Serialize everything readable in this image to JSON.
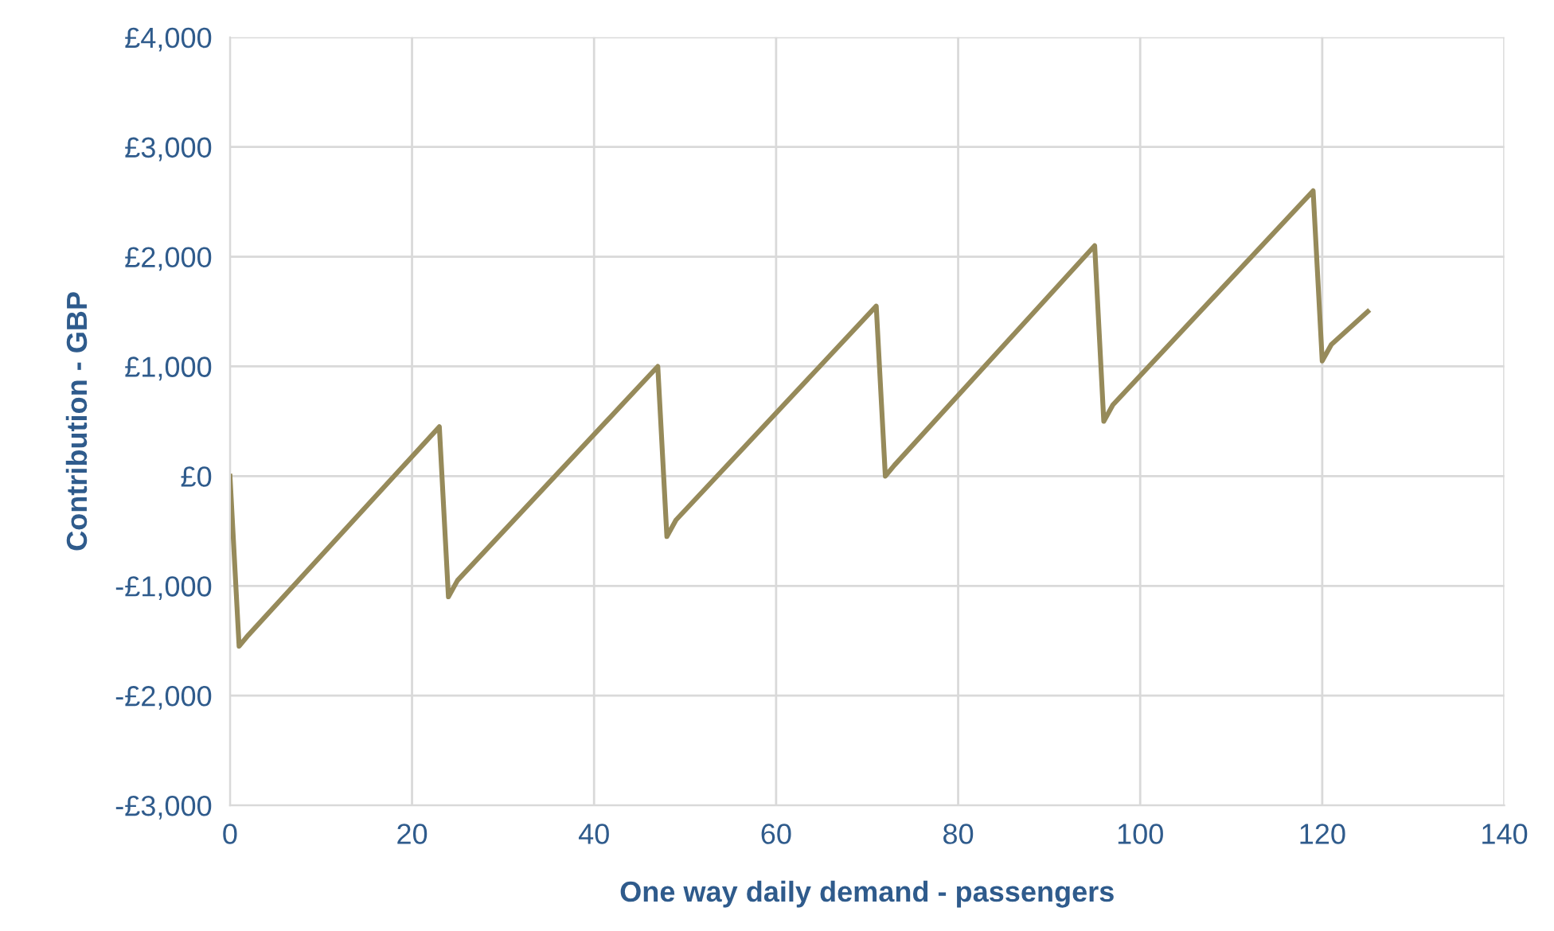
{
  "chart_data": {
    "type": "line",
    "xlabel": "One way daily demand - passengers",
    "ylabel": "Contribution - GBP",
    "series": [
      {
        "color": "#968a5a",
        "x": [
          0,
          1,
          2,
          23,
          24,
          25,
          47,
          48,
          49,
          71,
          72,
          73,
          95,
          96,
          97,
          119,
          120,
          121,
          125
        ],
        "values": [
          0,
          -1550,
          -1450,
          450,
          -1100,
          -950,
          1000,
          -550,
          -400,
          1550,
          0,
          100,
          2100,
          500,
          650,
          2600,
          1050,
          1200,
          1500
        ]
      }
    ],
    "xlim": [
      0,
      140
    ],
    "xticks": [
      0,
      20,
      40,
      60,
      80,
      100,
      120,
      140
    ],
    "ylim": [
      -3000,
      4000
    ],
    "yticks": [
      {
        "value": -3000,
        "label": "-£3,000"
      },
      {
        "value": -2000,
        "label": "-£2,000"
      },
      {
        "value": -1000,
        "label": "-£1,000"
      },
      {
        "value": 0,
        "label": "£0"
      },
      {
        "value": 1000,
        "label": "£1,000"
      },
      {
        "value": 2000,
        "label": "£2,000"
      },
      {
        "value": 3000,
        "label": "£3,000"
      },
      {
        "value": 4000,
        "label": "£4,000"
      }
    ],
    "grid": true,
    "marker": "none",
    "line_style": "solid"
  }
}
